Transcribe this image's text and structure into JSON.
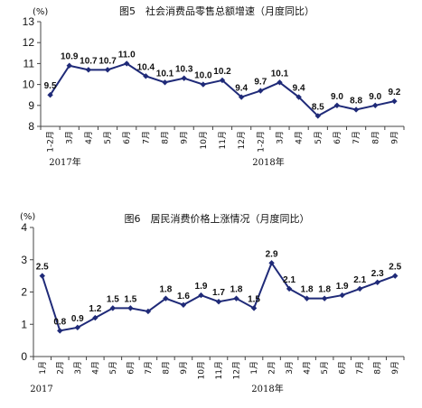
{
  "colors": {
    "line": "#1f2a78",
    "axis": "#444444"
  },
  "chart_data": [
    {
      "type": "line",
      "title": "图5　社会消费品零售总额增速（月度同比）",
      "unit_label": "(%)",
      "categories": [
        "1-2月",
        "3月",
        "4月",
        "5月",
        "6月",
        "7月",
        "8月",
        "9月",
        "10月",
        "11月",
        "12月",
        "1-2月",
        "3月",
        "4月",
        "5月",
        "6月",
        "7月",
        "8月",
        "9月"
      ],
      "series": [
        {
          "values": [
            9.5,
            10.9,
            10.7,
            10.7,
            11.0,
            10.4,
            10.1,
            10.3,
            10.0,
            10.2,
            9.4,
            9.7,
            10.1,
            9.4,
            8.5,
            9.0,
            8.8,
            9.0,
            9.2
          ]
        }
      ],
      "data_labels": [
        "9.5",
        "10.9",
        "10.7",
        "10.7",
        "11.0",
        "10.4",
        "10.1",
        "10.3",
        "10.0",
        "10.2",
        "9.4",
        "9.7",
        "10.1",
        "9.4",
        "8.5",
        "9.0",
        "8.8",
        "9.0",
        "9.2"
      ],
      "y_ticks": [
        "8",
        "9",
        "10",
        "11",
        "12",
        "13"
      ],
      "ylim": [
        8,
        13
      ],
      "year_labels": [
        "2017年",
        "2018年"
      ],
      "grid": false
    },
    {
      "type": "line",
      "title": "图6　居民消费价格上涨情况（月度同比）",
      "unit_label": "(%)",
      "categories": [
        "1月",
        "2月",
        "3月",
        "4月",
        "5月",
        "6月",
        "7月",
        "8月",
        "9月",
        "10月",
        "11月",
        "12月",
        "1月",
        "2月",
        "3月",
        "4月",
        "5月",
        "6月",
        "7月",
        "8月",
        "9月"
      ],
      "series": [
        {
          "values": [
            2.5,
            0.8,
            0.9,
            1.2,
            1.5,
            1.5,
            1.4,
            1.8,
            1.6,
            1.9,
            1.7,
            1.8,
            1.5,
            2.9,
            2.1,
            1.8,
            1.8,
            1.9,
            2.1,
            2.3,
            2.5
          ]
        }
      ],
      "data_labels": [
        "2.5",
        "0.8",
        "0.9",
        "1.2",
        "1.5",
        "1.5",
        "",
        "1.8",
        "1.6",
        "1.9",
        "1.7",
        "1.8",
        "1.5",
        "2.9",
        "2.1",
        "1.8",
        "1.8",
        "1.9",
        "2.1",
        "2.3",
        "2.5"
      ],
      "y_ticks": [
        "0",
        "1",
        "2",
        "3",
        "4"
      ],
      "ylim": [
        0,
        4
      ],
      "year_labels": [
        "2017",
        "2018年"
      ],
      "grid": false
    }
  ]
}
